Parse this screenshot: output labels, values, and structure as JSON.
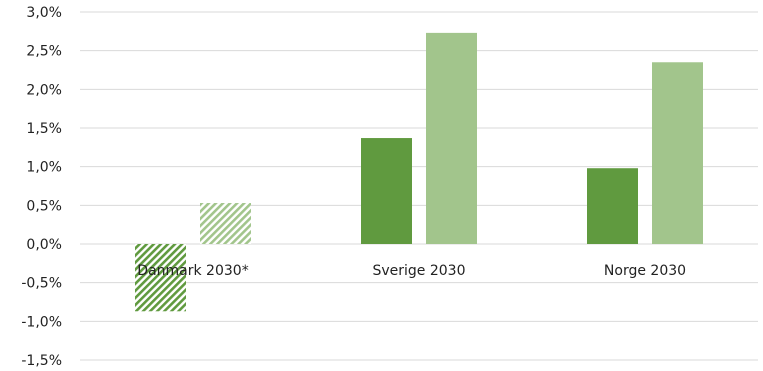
{
  "chart_data": {
    "type": "bar",
    "categories": [
      "Danmark 2030*",
      "Sverige 2030",
      "Norge 2030"
    ],
    "series": [
      {
        "values": [
          -0.87,
          1.37,
          0.98
        ],
        "color": "#609a3f",
        "pattern": [
          true,
          false,
          false
        ]
      },
      {
        "values": [
          0.53,
          2.73,
          2.35
        ],
        "color": "#a2c58c",
        "pattern": [
          true,
          false,
          false
        ]
      }
    ],
    "ylim": [
      -1.5,
      3.0
    ],
    "ticks": [
      "3,0%",
      "2,5%",
      "2,0%",
      "1,5%",
      "1,0%",
      "0,5%",
      "0,0%",
      "-0,5%",
      "-1,0%",
      "-1,5%"
    ],
    "tick_values": [
      3.0,
      2.5,
      2.0,
      1.5,
      1.0,
      0.5,
      0.0,
      -0.5,
      -1.0,
      -1.5
    ],
    "grid": true,
    "legend": "none"
  }
}
